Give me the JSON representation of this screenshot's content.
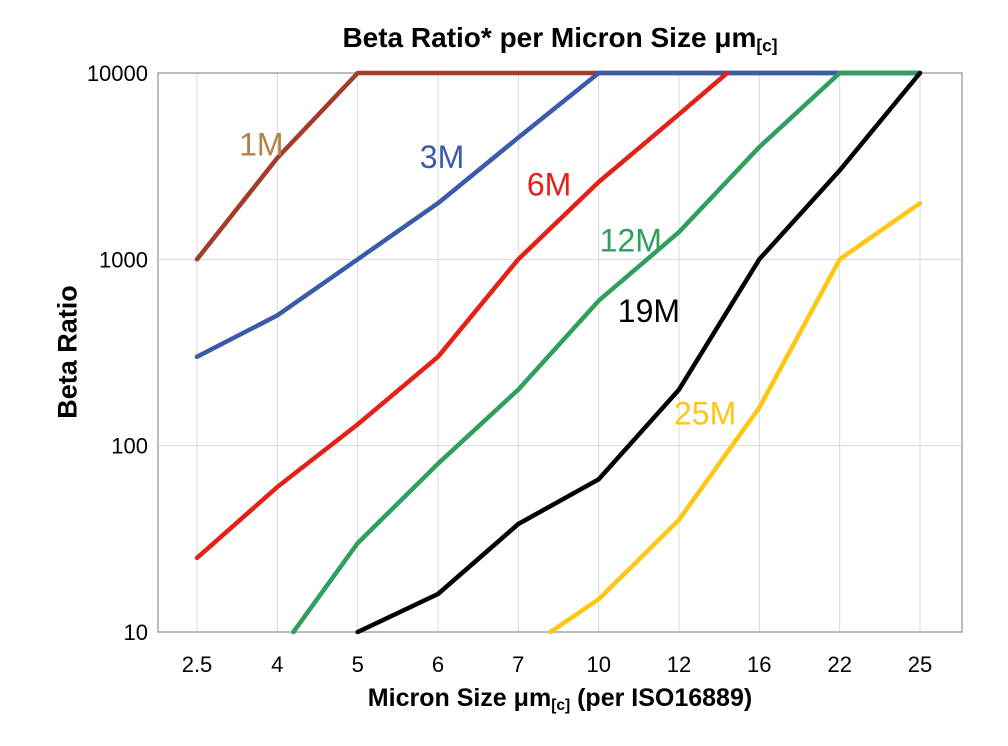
{
  "title": {
    "prefix": "Beta Ratio* per Micron Size ",
    "unit": "μm",
    "sub": "[c]"
  },
  "y_axis": {
    "label": "Beta Ratio"
  },
  "x_axis": {
    "prefix": "Micron Size ",
    "unit": "μm",
    "sub": "[c]",
    "suffix": " (per ISO16889)"
  },
  "colors": {
    "grid": "#D8D8D8",
    "frame": "#A6A6A6",
    "text": "#000000"
  },
  "chart_data": {
    "type": "line",
    "title": "Beta Ratio* per Micron Size μm[c]",
    "xlabel": "Micron Size μm[c] (per ISO16889)",
    "ylabel": "Beta Ratio",
    "x_scale": "category",
    "y_scale": "log",
    "ylim": [
      10,
      10000
    ],
    "grid": true,
    "legend_position": "inline-labels",
    "x_categories": [
      2.5,
      4,
      5,
      6,
      7,
      10,
      12,
      16,
      22,
      25
    ],
    "x_tick_labels": [
      "2.5",
      "4",
      "5",
      "6",
      "7",
      "10",
      "12",
      "16",
      "22",
      "25"
    ],
    "y_ticks": [
      10,
      100,
      1000,
      10000
    ],
    "y_tick_labels": [
      "10",
      "100",
      "1000",
      "10000"
    ],
    "series": [
      {
        "name": "1M",
        "color": "#A33C28",
        "label_color": "#B3824A",
        "points": [
          [
            2.5,
            1000
          ],
          [
            4,
            3500
          ],
          [
            5,
            10000
          ],
          [
            25,
            10000
          ]
        ],
        "label_at": [
          3.7,
          3600
        ]
      },
      {
        "name": "3M",
        "color": "#3A5BA9",
        "points": [
          [
            2.5,
            300
          ],
          [
            4,
            500
          ],
          [
            5,
            1000
          ],
          [
            6,
            2000
          ],
          [
            7,
            4500
          ],
          [
            10,
            10000
          ],
          [
            25,
            10000
          ]
        ],
        "label_at": [
          6.05,
          3100
        ]
      },
      {
        "name": "6M",
        "color": "#E32119",
        "points": [
          [
            2.5,
            25
          ],
          [
            4,
            60
          ],
          [
            5,
            130
          ],
          [
            6,
            300
          ],
          [
            7,
            1000
          ],
          [
            10,
            2600
          ],
          [
            12,
            6000
          ],
          [
            14.4,
            10000
          ]
        ],
        "label_at": [
          8.15,
          2200
        ]
      },
      {
        "name": "12M",
        "color": "#2F9E5F",
        "points": [
          [
            4.2,
            10
          ],
          [
            5,
            30
          ],
          [
            6,
            80
          ],
          [
            7,
            200
          ],
          [
            10,
            600
          ],
          [
            12,
            1400
          ],
          [
            16,
            4000
          ],
          [
            22,
            10000
          ],
          [
            25,
            10000
          ]
        ],
        "label_at": [
          10.8,
          1100
        ]
      },
      {
        "name": "19M",
        "color": "#000000",
        "points": [
          [
            5,
            10
          ],
          [
            6,
            16
          ],
          [
            7,
            38
          ],
          [
            10,
            66
          ],
          [
            12,
            200
          ],
          [
            16,
            1000
          ],
          [
            22,
            3000
          ],
          [
            25,
            10000
          ]
        ],
        "label_at": [
          11.25,
          460
        ]
      },
      {
        "name": "25M",
        "color": "#FFC613",
        "points": [
          [
            8.2,
            10
          ],
          [
            10,
            15
          ],
          [
            12,
            40
          ],
          [
            16,
            160
          ],
          [
            22,
            1000
          ],
          [
            25,
            2000
          ]
        ],
        "label_at": [
          13.3,
          130
        ]
      }
    ]
  }
}
